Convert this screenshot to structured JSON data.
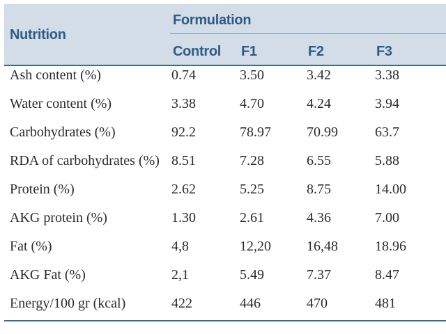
{
  "table": {
    "header": {
      "nutrition": "Nutrition",
      "formulation": "Formulation",
      "columns": [
        "Control",
        "F1",
        "F2",
        "F3"
      ]
    },
    "rows": [
      [
        "Ash content (%)",
        "0.74",
        "3.50",
        "3.42",
        "3.38"
      ],
      [
        "Water content (%)",
        "3.38",
        "4.70",
        "4.24",
        "3.94"
      ],
      [
        "Carbohydrates (%)",
        "92.2",
        "78.97",
        "70.99",
        "63.7"
      ],
      [
        "RDA of carbohydrates (%)",
        "8.51",
        "7.28",
        "6.55",
        "5.88"
      ],
      [
        "Protein (%)",
        "2.62",
        "5.25",
        "8.75",
        "14.00"
      ],
      [
        "AKG protein (%)",
        "1.30",
        "2.61",
        "4.36",
        "7.00"
      ],
      [
        "Fat (%)",
        "4,8",
        "12,20",
        "16,48",
        "18.96"
      ],
      [
        "AKG Fat (%)",
        "2,1",
        "5.49",
        "7.37",
        "8.47"
      ],
      [
        "Energy/100 gr (kcal)",
        "422",
        "446",
        "470",
        "481"
      ]
    ]
  },
  "colors": {
    "header_bg": "#d2dde8",
    "header_text": "#2e5b86",
    "rule": "#3f6a8f",
    "body_text": "#2b2b2b"
  }
}
